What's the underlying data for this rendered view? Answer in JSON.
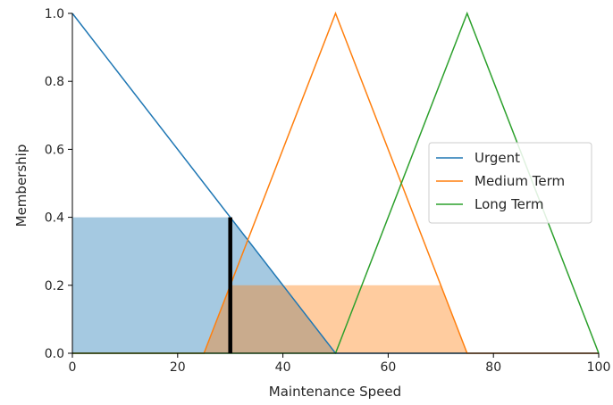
{
  "chart_data": {
    "type": "line",
    "xlabel": "Maintenance Speed",
    "ylabel": "Membership",
    "xlim": [
      0,
      100
    ],
    "ylim": [
      0,
      1.0
    ],
    "x_ticks": [
      "0",
      "20",
      "40",
      "60",
      "80",
      "100"
    ],
    "y_ticks": [
      "0.0",
      "0.2",
      "0.4",
      "0.6",
      "0.8",
      "1.0"
    ],
    "grid": false,
    "legend_position": "center-right",
    "series": [
      {
        "name": "Urgent",
        "color": "#1f77b4",
        "x": [
          0,
          50,
          100
        ],
        "y": [
          1.0,
          0.0,
          0.0
        ]
      },
      {
        "name": "Medium Term",
        "color": "#ff7f0e",
        "x": [
          0,
          25,
          50,
          75,
          100
        ],
        "y": [
          0.0,
          0.0,
          1.0,
          0.0,
          0.0
        ]
      },
      {
        "name": "Long Term",
        "color": "#2ca02c",
        "x": [
          0,
          50,
          75,
          100
        ],
        "y": [
          0.0,
          0.0,
          1.0,
          0.0
        ]
      }
    ],
    "filled_regions": [
      {
        "series": "Urgent",
        "color": "#1f77b4",
        "opacity": 0.4,
        "x": [
          0,
          30,
          50
        ],
        "y": [
          0.4,
          0.4,
          0.0
        ]
      },
      {
        "series": "Medium Term",
        "color": "#ff7f0e",
        "opacity": 0.4,
        "x": [
          25,
          30,
          70,
          75
        ],
        "y": [
          0.0,
          0.2,
          0.2,
          0.0
        ]
      }
    ],
    "marker_line": {
      "x": 30,
      "y_top": 0.4,
      "color": "#000000"
    }
  }
}
